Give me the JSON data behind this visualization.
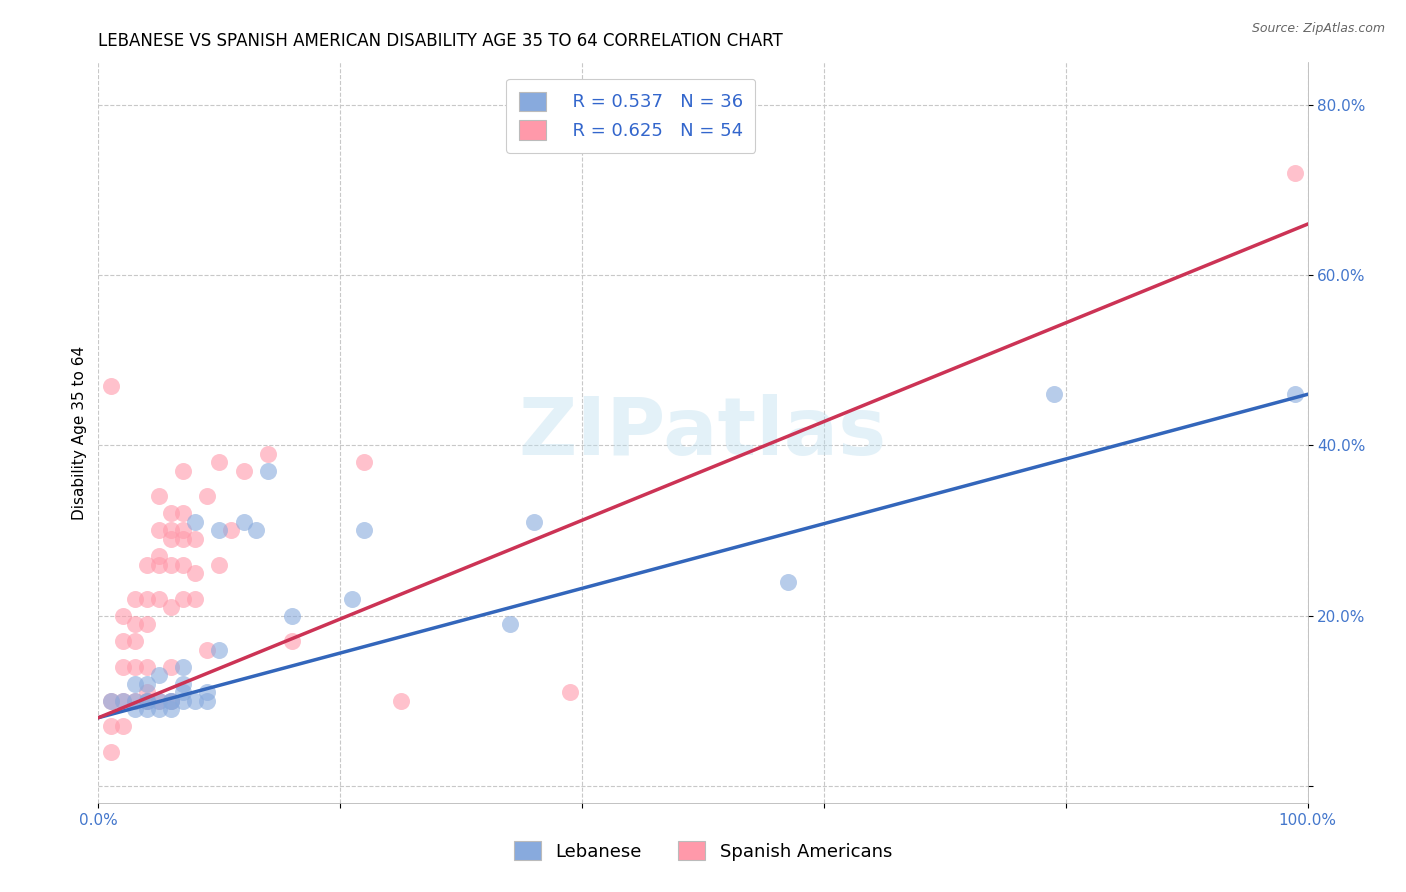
{
  "title": "LEBANESE VS SPANISH AMERICAN DISABILITY AGE 35 TO 64 CORRELATION CHART",
  "source": "Source: ZipAtlas.com",
  "ylabel": "Disability Age 35 to 64",
  "xlim": [
    0,
    1.0
  ],
  "ylim": [
    -0.02,
    0.85
  ],
  "xticks": [
    0.0,
    0.2,
    0.4,
    0.6,
    0.8,
    1.0
  ],
  "xticklabels": [
    "0.0%",
    "",
    "",
    "",
    "",
    "100.0%"
  ],
  "yticks": [
    0.0,
    0.2,
    0.4,
    0.6,
    0.8
  ],
  "yticklabels": [
    "",
    "20.0%",
    "40.0%",
    "60.0%",
    "80.0%"
  ],
  "background_color": "#ffffff",
  "grid_color": "#c8c8c8",
  "watermark_text": "ZIPatlas",
  "legend_r1": "R = 0.537",
  "legend_n1": "N = 36",
  "legend_r2": "R = 0.625",
  "legend_n2": "N = 54",
  "blue_color": "#88AADD",
  "pink_color": "#FF99AA",
  "blue_line_color": "#3366BB",
  "pink_line_color": "#CC3355",
  "title_fontsize": 12,
  "axis_label_fontsize": 11,
  "tick_fontsize": 11,
  "legend_fontsize": 13,
  "blue_scatter_x": [
    0.01,
    0.02,
    0.03,
    0.03,
    0.03,
    0.04,
    0.04,
    0.04,
    0.04,
    0.05,
    0.05,
    0.05,
    0.06,
    0.06,
    0.06,
    0.07,
    0.07,
    0.07,
    0.07,
    0.08,
    0.08,
    0.09,
    0.09,
    0.1,
    0.1,
    0.12,
    0.13,
    0.14,
    0.16,
    0.21,
    0.22,
    0.34,
    0.36,
    0.57,
    0.79,
    0.99
  ],
  "blue_scatter_y": [
    0.1,
    0.1,
    0.09,
    0.1,
    0.12,
    0.09,
    0.1,
    0.1,
    0.12,
    0.09,
    0.1,
    0.13,
    0.09,
    0.1,
    0.1,
    0.1,
    0.11,
    0.12,
    0.14,
    0.1,
    0.31,
    0.1,
    0.11,
    0.16,
    0.3,
    0.31,
    0.3,
    0.37,
    0.2,
    0.22,
    0.3,
    0.19,
    0.31,
    0.24,
    0.46,
    0.46
  ],
  "pink_scatter_x": [
    0.01,
    0.01,
    0.01,
    0.01,
    0.02,
    0.02,
    0.02,
    0.02,
    0.02,
    0.03,
    0.03,
    0.03,
    0.03,
    0.03,
    0.04,
    0.04,
    0.04,
    0.04,
    0.04,
    0.04,
    0.05,
    0.05,
    0.05,
    0.05,
    0.05,
    0.05,
    0.06,
    0.06,
    0.06,
    0.06,
    0.06,
    0.06,
    0.06,
    0.07,
    0.07,
    0.07,
    0.07,
    0.07,
    0.07,
    0.08,
    0.08,
    0.08,
    0.09,
    0.09,
    0.1,
    0.1,
    0.11,
    0.12,
    0.14,
    0.16,
    0.22,
    0.25,
    0.39,
    0.99
  ],
  "pink_scatter_y": [
    0.04,
    0.07,
    0.1,
    0.47,
    0.07,
    0.1,
    0.14,
    0.17,
    0.2,
    0.1,
    0.14,
    0.17,
    0.19,
    0.22,
    0.1,
    0.11,
    0.14,
    0.19,
    0.22,
    0.26,
    0.1,
    0.22,
    0.26,
    0.27,
    0.3,
    0.34,
    0.1,
    0.14,
    0.21,
    0.26,
    0.29,
    0.3,
    0.32,
    0.22,
    0.26,
    0.29,
    0.3,
    0.32,
    0.37,
    0.22,
    0.25,
    0.29,
    0.16,
    0.34,
    0.26,
    0.38,
    0.3,
    0.37,
    0.39,
    0.17,
    0.38,
    0.1,
    0.11,
    0.72
  ],
  "blue_line_x": [
    0.0,
    1.0
  ],
  "blue_line_y": [
    0.08,
    0.46
  ],
  "pink_line_x": [
    0.0,
    1.0
  ],
  "pink_line_y": [
    0.08,
    0.66
  ]
}
